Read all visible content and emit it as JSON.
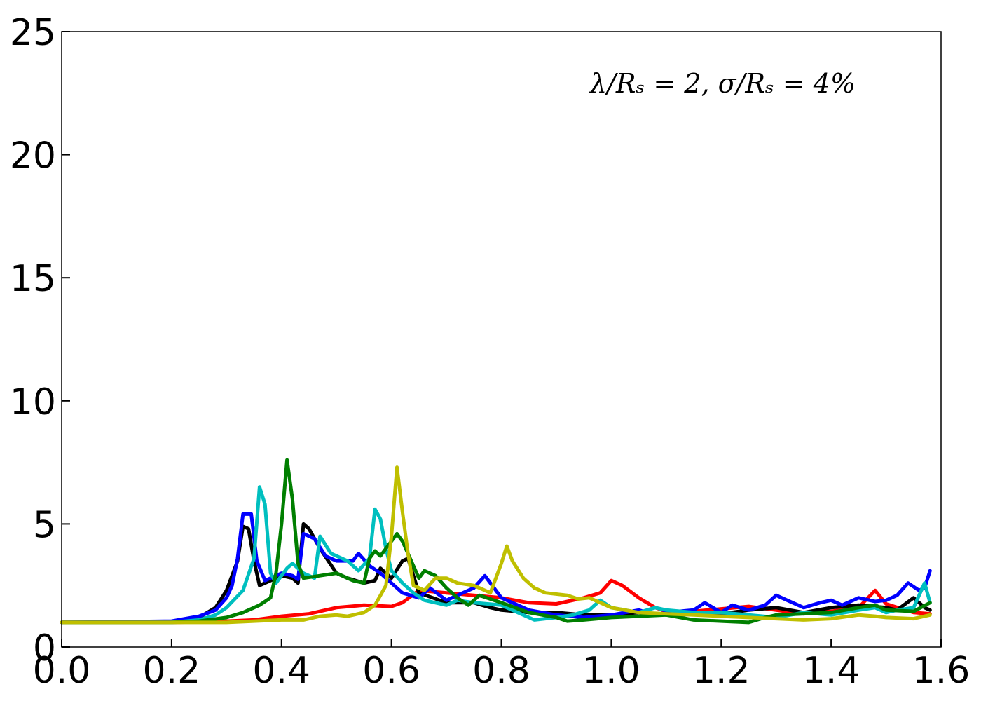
{
  "chart_data": {
    "type": "line",
    "title": "",
    "xlabel": "",
    "ylabel": "",
    "xlim": [
      0.0,
      1.6
    ],
    "ylim": [
      0,
      25
    ],
    "xticks": [
      "0.0",
      "0.2",
      "0.4",
      "0.6",
      "0.8",
      "1.0",
      "1.2",
      "1.4",
      "1.6"
    ],
    "xtick_values": [
      0.0,
      0.2,
      0.4,
      0.6,
      0.8,
      1.0,
      1.2,
      1.4,
      1.6
    ],
    "yticks": [
      "0",
      "5",
      "10",
      "15",
      "20",
      "25"
    ],
    "ytick_values": [
      0,
      5,
      10,
      15,
      20,
      25
    ],
    "annotation": "λ/Rₛ = 2, σ/Rₛ = 4%",
    "grid": false,
    "legend": "none",
    "series": [
      {
        "color": "#ff0000",
        "points": [
          [
            0.0,
            1.0
          ],
          [
            0.2,
            1.0
          ],
          [
            0.3,
            1.05
          ],
          [
            0.35,
            1.1
          ],
          [
            0.4,
            1.25
          ],
          [
            0.45,
            1.35
          ],
          [
            0.5,
            1.6
          ],
          [
            0.55,
            1.7
          ],
          [
            0.6,
            1.65
          ],
          [
            0.62,
            1.8
          ],
          [
            0.65,
            2.3
          ],
          [
            0.7,
            2.2
          ],
          [
            0.75,
            2.1
          ],
          [
            0.8,
            2.0
          ],
          [
            0.85,
            1.8
          ],
          [
            0.9,
            1.75
          ],
          [
            0.95,
            2.0
          ],
          [
            0.98,
            2.2
          ],
          [
            1.0,
            2.7
          ],
          [
            1.02,
            2.5
          ],
          [
            1.05,
            2.0
          ],
          [
            1.08,
            1.6
          ],
          [
            1.1,
            1.45
          ],
          [
            1.15,
            1.45
          ],
          [
            1.2,
            1.55
          ],
          [
            1.25,
            1.65
          ],
          [
            1.3,
            1.5
          ],
          [
            1.35,
            1.35
          ],
          [
            1.4,
            1.45
          ],
          [
            1.45,
            1.6
          ],
          [
            1.48,
            2.3
          ],
          [
            1.5,
            1.75
          ],
          [
            1.55,
            1.4
          ],
          [
            1.58,
            1.35
          ]
        ]
      },
      {
        "color": "#000000",
        "points": [
          [
            0.0,
            1.0
          ],
          [
            0.2,
            1.0
          ],
          [
            0.25,
            1.2
          ],
          [
            0.28,
            1.6
          ],
          [
            0.3,
            2.3
          ],
          [
            0.32,
            3.5
          ],
          [
            0.33,
            4.9
          ],
          [
            0.34,
            4.8
          ],
          [
            0.35,
            3.5
          ],
          [
            0.36,
            2.5
          ],
          [
            0.38,
            2.7
          ],
          [
            0.4,
            2.9
          ],
          [
            0.42,
            2.8
          ],
          [
            0.43,
            2.6
          ],
          [
            0.44,
            5.0
          ],
          [
            0.45,
            4.8
          ],
          [
            0.47,
            4.0
          ],
          [
            0.5,
            3.0
          ],
          [
            0.52,
            2.8
          ],
          [
            0.55,
            2.6
          ],
          [
            0.57,
            2.7
          ],
          [
            0.58,
            3.2
          ],
          [
            0.6,
            2.8
          ],
          [
            0.62,
            3.5
          ],
          [
            0.63,
            3.6
          ],
          [
            0.65,
            2.2
          ],
          [
            0.7,
            1.8
          ],
          [
            0.75,
            1.8
          ],
          [
            0.78,
            1.6
          ],
          [
            0.8,
            1.5
          ],
          [
            0.85,
            1.4
          ],
          [
            0.9,
            1.4
          ],
          [
            0.95,
            1.3
          ],
          [
            1.0,
            1.3
          ],
          [
            1.05,
            1.4
          ],
          [
            1.1,
            1.3
          ],
          [
            1.2,
            1.35
          ],
          [
            1.25,
            1.5
          ],
          [
            1.3,
            1.6
          ],
          [
            1.35,
            1.4
          ],
          [
            1.4,
            1.6
          ],
          [
            1.45,
            1.7
          ],
          [
            1.5,
            1.6
          ],
          [
            1.52,
            1.5
          ],
          [
            1.55,
            2.0
          ],
          [
            1.57,
            1.6
          ],
          [
            1.58,
            1.5
          ]
        ]
      },
      {
        "color": "#0000ff",
        "points": [
          [
            0.0,
            1.0
          ],
          [
            0.2,
            1.05
          ],
          [
            0.25,
            1.25
          ],
          [
            0.28,
            1.5
          ],
          [
            0.3,
            2.0
          ],
          [
            0.31,
            2.5
          ],
          [
            0.32,
            3.6
          ],
          [
            0.33,
            5.4
          ],
          [
            0.345,
            5.4
          ],
          [
            0.355,
            3.5
          ],
          [
            0.37,
            2.7
          ],
          [
            0.4,
            3.0
          ],
          [
            0.42,
            2.9
          ],
          [
            0.43,
            2.75
          ],
          [
            0.44,
            4.6
          ],
          [
            0.46,
            4.4
          ],
          [
            0.48,
            3.7
          ],
          [
            0.5,
            3.5
          ],
          [
            0.53,
            3.5
          ],
          [
            0.54,
            3.8
          ],
          [
            0.56,
            3.3
          ],
          [
            0.58,
            3.0
          ],
          [
            0.6,
            2.6
          ],
          [
            0.62,
            2.2
          ],
          [
            0.65,
            2.0
          ],
          [
            0.67,
            2.4
          ],
          [
            0.7,
            1.9
          ],
          [
            0.75,
            2.4
          ],
          [
            0.77,
            2.9
          ],
          [
            0.8,
            2.0
          ],
          [
            0.85,
            1.5
          ],
          [
            0.9,
            1.3
          ],
          [
            0.95,
            1.2
          ],
          [
            1.0,
            1.3
          ],
          [
            1.05,
            1.5
          ],
          [
            1.08,
            1.3
          ],
          [
            1.1,
            1.4
          ],
          [
            1.15,
            1.5
          ],
          [
            1.17,
            1.8
          ],
          [
            1.2,
            1.4
          ],
          [
            1.22,
            1.7
          ],
          [
            1.25,
            1.5
          ],
          [
            1.28,
            1.7
          ],
          [
            1.3,
            2.1
          ],
          [
            1.32,
            1.9
          ],
          [
            1.35,
            1.6
          ],
          [
            1.38,
            1.8
          ],
          [
            1.4,
            1.9
          ],
          [
            1.42,
            1.7
          ],
          [
            1.45,
            2.0
          ],
          [
            1.48,
            1.85
          ],
          [
            1.5,
            1.9
          ],
          [
            1.52,
            2.1
          ],
          [
            1.54,
            2.6
          ],
          [
            1.56,
            2.3
          ],
          [
            1.57,
            2.4
          ],
          [
            1.58,
            3.1
          ]
        ]
      },
      {
        "color": "#00bfbf",
        "points": [
          [
            0.0,
            1.0
          ],
          [
            0.2,
            1.0
          ],
          [
            0.25,
            1.1
          ],
          [
            0.28,
            1.3
          ],
          [
            0.3,
            1.6
          ],
          [
            0.33,
            2.3
          ],
          [
            0.35,
            3.6
          ],
          [
            0.36,
            6.5
          ],
          [
            0.37,
            5.8
          ],
          [
            0.38,
            3.0
          ],
          [
            0.39,
            2.6
          ],
          [
            0.41,
            3.2
          ],
          [
            0.42,
            3.4
          ],
          [
            0.43,
            3.2
          ],
          [
            0.44,
            3.0
          ],
          [
            0.46,
            2.8
          ],
          [
            0.47,
            4.5
          ],
          [
            0.49,
            3.8
          ],
          [
            0.52,
            3.5
          ],
          [
            0.54,
            3.1
          ],
          [
            0.56,
            3.6
          ],
          [
            0.57,
            5.6
          ],
          [
            0.58,
            5.2
          ],
          [
            0.59,
            4.0
          ],
          [
            0.6,
            3.1
          ],
          [
            0.62,
            2.6
          ],
          [
            0.64,
            2.2
          ],
          [
            0.66,
            1.9
          ],
          [
            0.7,
            1.7
          ],
          [
            0.72,
            1.9
          ],
          [
            0.75,
            1.8
          ],
          [
            0.8,
            1.7
          ],
          [
            0.83,
            1.4
          ],
          [
            0.86,
            1.1
          ],
          [
            0.9,
            1.2
          ],
          [
            0.93,
            1.3
          ],
          [
            0.96,
            1.5
          ],
          [
            0.98,
            1.9
          ],
          [
            1.0,
            1.6
          ],
          [
            1.05,
            1.4
          ],
          [
            1.08,
            1.6
          ],
          [
            1.1,
            1.5
          ],
          [
            1.15,
            1.4
          ],
          [
            1.2,
            1.4
          ],
          [
            1.25,
            1.3
          ],
          [
            1.3,
            1.2
          ],
          [
            1.35,
            1.4
          ],
          [
            1.4,
            1.3
          ],
          [
            1.45,
            1.5
          ],
          [
            1.48,
            1.6
          ],
          [
            1.5,
            1.4
          ],
          [
            1.52,
            1.5
          ],
          [
            1.55,
            1.6
          ],
          [
            1.57,
            2.6
          ],
          [
            1.58,
            1.8
          ]
        ]
      },
      {
        "color": "#007f00",
        "points": [
          [
            0.0,
            1.0
          ],
          [
            0.2,
            1.0
          ],
          [
            0.25,
            1.05
          ],
          [
            0.3,
            1.2
          ],
          [
            0.33,
            1.4
          ],
          [
            0.36,
            1.7
          ],
          [
            0.38,
            2.0
          ],
          [
            0.39,
            3.0
          ],
          [
            0.4,
            5.0
          ],
          [
            0.41,
            7.6
          ],
          [
            0.42,
            6.0
          ],
          [
            0.43,
            3.4
          ],
          [
            0.44,
            2.8
          ],
          [
            0.47,
            2.9
          ],
          [
            0.5,
            3.0
          ],
          [
            0.53,
            2.7
          ],
          [
            0.55,
            2.6
          ],
          [
            0.56,
            3.6
          ],
          [
            0.57,
            3.9
          ],
          [
            0.58,
            3.7
          ],
          [
            0.6,
            4.3
          ],
          [
            0.61,
            4.6
          ],
          [
            0.62,
            4.3
          ],
          [
            0.64,
            3.3
          ],
          [
            0.65,
            2.8
          ],
          [
            0.66,
            3.1
          ],
          [
            0.68,
            2.9
          ],
          [
            0.7,
            2.4
          ],
          [
            0.72,
            2.0
          ],
          [
            0.74,
            1.7
          ],
          [
            0.76,
            2.1
          ],
          [
            0.8,
            1.8
          ],
          [
            0.85,
            1.4
          ],
          [
            0.9,
            1.2
          ],
          [
            0.92,
            1.05
          ],
          [
            0.95,
            1.1
          ],
          [
            1.0,
            1.2
          ],
          [
            1.05,
            1.25
          ],
          [
            1.1,
            1.3
          ],
          [
            1.15,
            1.1
          ],
          [
            1.2,
            1.05
          ],
          [
            1.25,
            1.0
          ],
          [
            1.28,
            1.2
          ],
          [
            1.3,
            1.3
          ],
          [
            1.35,
            1.35
          ],
          [
            1.4,
            1.4
          ],
          [
            1.45,
            1.6
          ],
          [
            1.48,
            1.7
          ],
          [
            1.5,
            1.5
          ],
          [
            1.55,
            1.45
          ],
          [
            1.58,
            1.8
          ]
        ]
      },
      {
        "color": "#bfbf00",
        "points": [
          [
            0.0,
            1.0
          ],
          [
            0.2,
            1.0
          ],
          [
            0.3,
            1.0
          ],
          [
            0.35,
            1.05
          ],
          [
            0.4,
            1.1
          ],
          [
            0.44,
            1.1
          ],
          [
            0.47,
            1.25
          ],
          [
            0.5,
            1.3
          ],
          [
            0.52,
            1.25
          ],
          [
            0.55,
            1.4
          ],
          [
            0.57,
            1.7
          ],
          [
            0.59,
            2.5
          ],
          [
            0.6,
            4.5
          ],
          [
            0.61,
            7.3
          ],
          [
            0.62,
            5.5
          ],
          [
            0.63,
            3.8
          ],
          [
            0.64,
            2.5
          ],
          [
            0.66,
            2.3
          ],
          [
            0.68,
            2.8
          ],
          [
            0.7,
            2.8
          ],
          [
            0.72,
            2.6
          ],
          [
            0.75,
            2.5
          ],
          [
            0.78,
            2.2
          ],
          [
            0.8,
            3.4
          ],
          [
            0.81,
            4.1
          ],
          [
            0.82,
            3.5
          ],
          [
            0.84,
            2.8
          ],
          [
            0.86,
            2.4
          ],
          [
            0.88,
            2.2
          ],
          [
            0.92,
            2.1
          ],
          [
            0.94,
            1.95
          ],
          [
            0.96,
            2.0
          ],
          [
            1.0,
            1.6
          ],
          [
            1.05,
            1.4
          ],
          [
            1.1,
            1.35
          ],
          [
            1.15,
            1.3
          ],
          [
            1.2,
            1.25
          ],
          [
            1.25,
            1.2
          ],
          [
            1.3,
            1.15
          ],
          [
            1.35,
            1.1
          ],
          [
            1.4,
            1.15
          ],
          [
            1.45,
            1.3
          ],
          [
            1.48,
            1.25
          ],
          [
            1.5,
            1.2
          ],
          [
            1.55,
            1.15
          ],
          [
            1.58,
            1.3
          ]
        ]
      }
    ]
  }
}
